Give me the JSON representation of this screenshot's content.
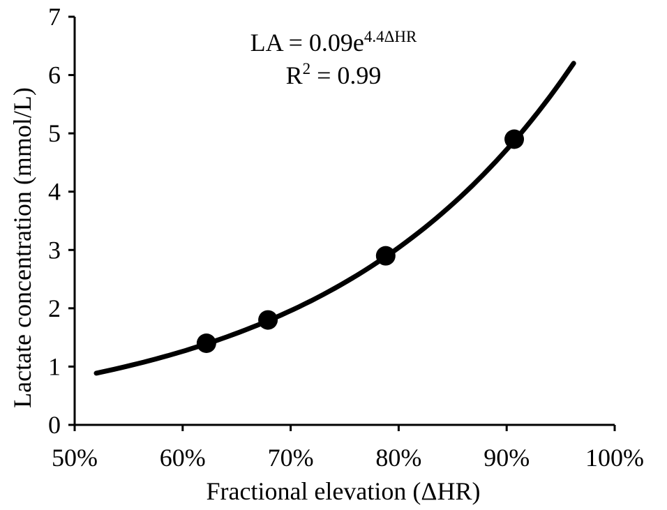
{
  "chart_data": {
    "type": "scatter",
    "xlabel": "Fractional elevation (ΔHR)",
    "ylabel": "Lactate concentration (mmol/L)",
    "xlim": [
      0.5,
      1.0
    ],
    "ylim": [
      0,
      7
    ],
    "x_ticks": [
      0.5,
      0.6,
      0.7,
      0.8,
      0.9,
      1.0
    ],
    "x_tick_labels": [
      "50%",
      "60%",
      "70%",
      "80%",
      "90%",
      "100%"
    ],
    "y_ticks": [
      0,
      1,
      2,
      3,
      4,
      5,
      6,
      7
    ],
    "y_tick_labels": [
      "0",
      "1",
      "2",
      "3",
      "4",
      "5",
      "6",
      "7"
    ],
    "grid": false,
    "legend": "none",
    "series": [
      {
        "points": [
          {
            "x": 0.622,
            "y": 1.4
          },
          {
            "x": 0.679,
            "y": 1.8
          },
          {
            "x": 0.788,
            "y": 2.9
          },
          {
            "x": 0.907,
            "y": 4.9
          }
        ],
        "marker": "filled-circle",
        "color": "#000000"
      }
    ],
    "trendline": {
      "type": "exponential",
      "a": 0.09,
      "b": 4.4,
      "x_range": [
        0.52,
        0.962
      ],
      "color": "#000000"
    },
    "annotation": {
      "equation_main": "LA = 0.09e",
      "equation_exponent": "4.4ΔHR",
      "r2_prefix": "R",
      "r2_superscript": "2",
      "r2_value": " = 0.99"
    }
  }
}
